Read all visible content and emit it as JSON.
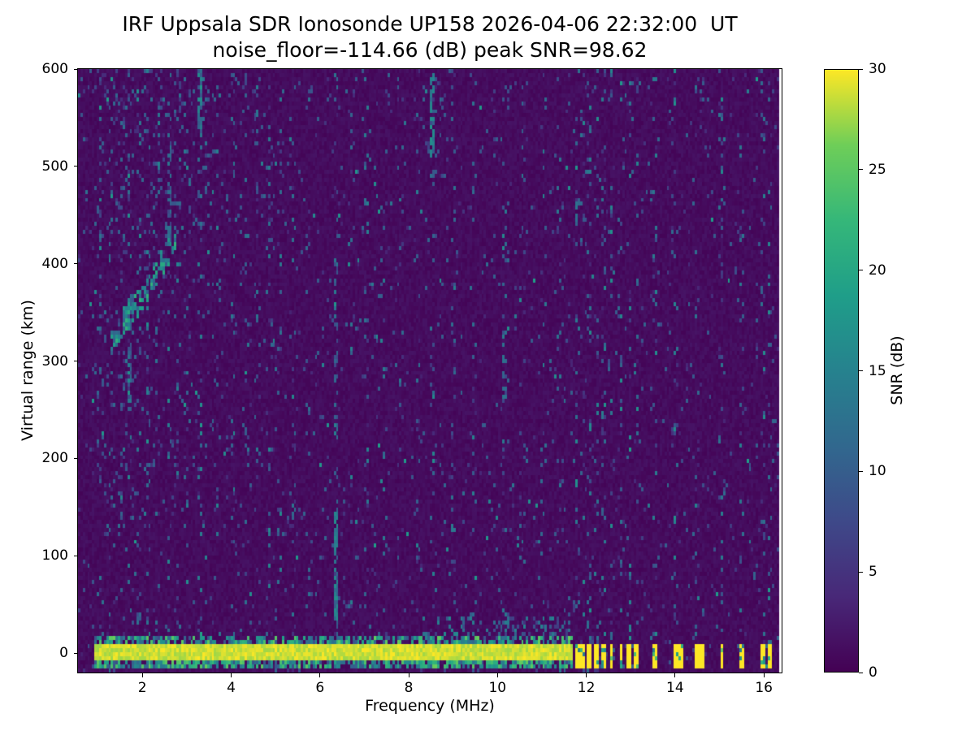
{
  "title": {
    "line1": "IRF Uppsala SDR Ionosonde UP158 2026-04-06 22:32:00  UT",
    "line2": "noise_floor=-114.66 (dB) peak SNR=98.62"
  },
  "chart_data": {
    "type": "heatmap",
    "title": "IRF Uppsala SDR Ionosonde UP158 2026-04-06 22:32:00  UT",
    "subtitle": "noise_floor=-114.66 (dB) peak SNR=98.62",
    "xlabel": "Frequency (MHz)",
    "ylabel": "Virtual range (km)",
    "xlim": [
      0.55,
      16.4
    ],
    "ylim": [
      -20,
      600
    ],
    "x_ticks": [
      2,
      4,
      6,
      8,
      10,
      12,
      14,
      16
    ],
    "y_ticks": [
      0,
      100,
      200,
      300,
      400,
      500,
      600
    ],
    "grid": false,
    "data_extent": {
      "f_min": 0.55,
      "f_max": 16.33
    },
    "colorbar": {
      "label": "SNR (dB)",
      "min": 0,
      "max": 30,
      "ticks": [
        0,
        5,
        10,
        15,
        20,
        25,
        30
      ],
      "colormap": "viridis",
      "stops": [
        {
          "t": 0.0,
          "color": "#440154"
        },
        {
          "t": 0.125,
          "color": "#482878"
        },
        {
          "t": 0.25,
          "color": "#3e4989"
        },
        {
          "t": 0.375,
          "color": "#31688e"
        },
        {
          "t": 0.5,
          "color": "#26828e"
        },
        {
          "t": 0.625,
          "color": "#1f9e89"
        },
        {
          "t": 0.75,
          "color": "#35b779"
        },
        {
          "t": 0.875,
          "color": "#6ece58"
        },
        {
          "t": 1.0,
          "color": "#fde725"
        }
      ]
    },
    "features": {
      "noise_floor_db": -114.66,
      "peak_snr_db": 98.62,
      "background": {
        "base_snr": [
          0,
          2
        ],
        "speckle_prob": 0.03,
        "speckle_snr": [
          3,
          13
        ]
      },
      "ground_band": {
        "f_start": 0.9,
        "f_end": 11.7,
        "core_range": [
          -8,
          10
        ],
        "core_snr": 30,
        "fringe_range": [
          -15,
          18
        ],
        "fringe_snr": [
          8,
          26
        ]
      },
      "near_band_scatter": {
        "f_start": 8.3,
        "f_end": 11.65,
        "range": [
          18,
          38
        ],
        "snr": [
          6,
          16
        ],
        "density": 0.3
      },
      "discrete_tx_bars": {
        "freqs": [
          11.78,
          11.93,
          12.08,
          12.24,
          12.4,
          12.57,
          12.78,
          12.98,
          13.14,
          13.55,
          14.0,
          14.12,
          14.5,
          14.62,
          15.05,
          15.5,
          16.0,
          16.12
        ],
        "range": [
          -14,
          8
        ],
        "snr": 30
      },
      "echo_trace": {
        "points": [
          [
            1.35,
            318
          ],
          [
            1.45,
            328
          ],
          [
            1.55,
            338
          ],
          [
            1.62,
            345
          ],
          [
            1.7,
            350
          ],
          [
            1.78,
            354
          ],
          [
            1.88,
            358
          ],
          [
            1.98,
            364
          ],
          [
            2.08,
            372
          ],
          [
            2.18,
            380
          ],
          [
            2.3,
            390
          ],
          [
            2.42,
            400
          ],
          [
            2.55,
            412
          ],
          [
            2.68,
            424
          ]
        ],
        "snr": [
          9,
          22
        ],
        "density": 0.55
      },
      "dense_segments": [
        {
          "freq": 1.7,
          "range": [
            250,
            325
          ],
          "snr": 11,
          "density": 0.5
        },
        {
          "freq": 6.35,
          "range": [
            15,
            150
          ],
          "snr": 13,
          "density": 0.75
        },
        {
          "freq": 6.35,
          "range": [
            150,
            430
          ],
          "snr": 10,
          "density": 0.3
        },
        {
          "freq": 3.32,
          "range": [
            530,
            600
          ],
          "snr": 13,
          "density": 0.65
        },
        {
          "freq": 8.55,
          "range": [
            510,
            600
          ],
          "snr": 13,
          "density": 0.6
        },
        {
          "freq": 2.6,
          "range": [
            420,
            540
          ],
          "snr": 10,
          "density": 0.35
        },
        {
          "freq": 10.15,
          "range": [
            240,
            320
          ],
          "snr": 10,
          "density": 0.3
        }
      ],
      "scatter_regions": [
        {
          "f": [
            1.0,
            3.6
          ],
          "range": [
            430,
            600
          ],
          "density": 0.07,
          "snr": [
            5,
            13
          ]
        },
        {
          "f": [
            1.0,
            2.3
          ],
          "range": [
            120,
            330
          ],
          "density": 0.05,
          "snr": [
            5,
            12
          ]
        },
        {
          "f": [
            3.9,
            5.2
          ],
          "range": [
            430,
            600
          ],
          "density": 0.04,
          "snr": [
            5,
            11
          ]
        },
        {
          "f": [
            8.3,
            9.0
          ],
          "range": [
            480,
            600
          ],
          "density": 0.05,
          "snr": [
            5,
            12
          ]
        }
      ],
      "rfi_stripes": [
        {
          "freq": 1.05,
          "intensity": 0.5
        },
        {
          "freq": 1.3,
          "intensity": 0.35
        },
        {
          "freq": 1.55,
          "intensity": 0.4
        },
        {
          "freq": 1.7,
          "intensity": 0.55
        },
        {
          "freq": 1.9,
          "intensity": 0.45
        },
        {
          "freq": 2.1,
          "intensity": 0.5
        },
        {
          "freq": 2.35,
          "intensity": 0.4
        },
        {
          "freq": 2.6,
          "intensity": 0.45
        },
        {
          "freq": 2.8,
          "intensity": 0.35
        },
        {
          "freq": 3.0,
          "intensity": 0.45
        },
        {
          "freq": 3.32,
          "intensity": 0.6
        },
        {
          "freq": 3.7,
          "intensity": 0.35
        },
        {
          "freq": 4.05,
          "intensity": 0.4
        },
        {
          "freq": 4.35,
          "intensity": 0.3
        },
        {
          "freq": 4.6,
          "intensity": 0.35
        },
        {
          "freq": 4.85,
          "intensity": 0.4
        },
        {
          "freq": 5.1,
          "intensity": 0.3
        },
        {
          "freq": 5.4,
          "intensity": 0.35
        },
        {
          "freq": 5.75,
          "intensity": 0.3
        },
        {
          "freq": 6.35,
          "intensity": 0.5
        },
        {
          "freq": 6.7,
          "intensity": 0.3
        },
        {
          "freq": 7.05,
          "intensity": 0.35
        },
        {
          "freq": 7.45,
          "intensity": 0.3
        },
        {
          "freq": 7.8,
          "intensity": 0.3
        },
        {
          "freq": 8.2,
          "intensity": 0.3
        },
        {
          "freq": 8.55,
          "intensity": 0.55
        },
        {
          "freq": 9.0,
          "intensity": 0.35
        },
        {
          "freq": 9.45,
          "intensity": 0.3
        },
        {
          "freq": 10.15,
          "intensity": 0.4
        },
        {
          "freq": 10.6,
          "intensity": 0.3
        },
        {
          "freq": 11.05,
          "intensity": 0.35
        },
        {
          "freq": 11.4,
          "intensity": 0.3
        },
        {
          "freq": 11.78,
          "intensity": 0.5
        },
        {
          "freq": 11.93,
          "intensity": 0.45
        },
        {
          "freq": 12.08,
          "intensity": 0.5
        },
        {
          "freq": 12.24,
          "intensity": 0.45
        },
        {
          "freq": 12.4,
          "intensity": 0.5
        },
        {
          "freq": 12.57,
          "intensity": 0.45
        },
        {
          "freq": 12.78,
          "intensity": 0.5
        },
        {
          "freq": 12.98,
          "intensity": 0.45
        },
        {
          "freq": 13.14,
          "intensity": 0.45
        },
        {
          "freq": 13.55,
          "intensity": 0.5
        },
        {
          "freq": 14.0,
          "intensity": 0.5
        },
        {
          "freq": 14.5,
          "intensity": 0.45
        },
        {
          "freq": 15.05,
          "intensity": 0.45
        },
        {
          "freq": 15.5,
          "intensity": 0.4
        },
        {
          "freq": 16.0,
          "intensity": 0.45
        },
        {
          "freq": 16.12,
          "intensity": 0.4
        }
      ]
    }
  }
}
